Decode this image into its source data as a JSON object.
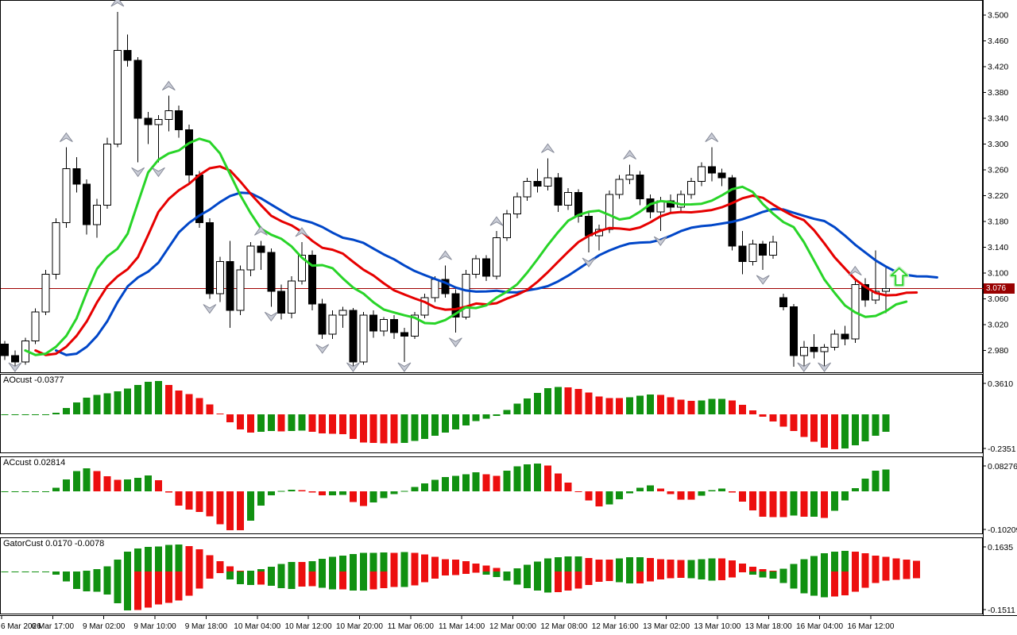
{
  "app": "trading-chart",
  "colors": {
    "background": "#ffffff",
    "border": "#000000",
    "bull_candle": "#ffffff",
    "bear_candle": "#000000",
    "candle_outline": "#000000",
    "alligator_jaw_blue": "#0046c8",
    "alligator_teeth_red": "#e60000",
    "alligator_lips_green": "#28d428",
    "hist_up_green": "#119111",
    "hist_down_red": "#ec0f0f",
    "hline_red": "#a00000",
    "price_tag_bg": "#990000",
    "price_tag_text": "#ffffff",
    "fractal_fill": "#c9ccd6",
    "fractal_stroke": "#878b99",
    "buy_arrow_stroke": "#2fd32f",
    "buy_arrow_glow": "#c2eec2",
    "axis_text": "#000000"
  },
  "main_chart": {
    "y_axis_labels": [
      "3.500",
      "3.460",
      "3.420",
      "3.380",
      "3.340",
      "3.300",
      "3.260",
      "3.220",
      "3.180",
      "3.140",
      "3.100",
      "3.060",
      "3.020",
      "2.980"
    ],
    "hline": {
      "price": 3.076,
      "label": "3.076"
    },
    "buy_arrow": {
      "bar_index": 87.3,
      "price": 3.095
    },
    "fractals_up": [
      6,
      11,
      16,
      25,
      29,
      43,
      48,
      53,
      61,
      69,
      83
    ],
    "fractals_down": [
      1,
      13,
      15,
      20,
      26,
      31,
      34,
      39,
      44,
      57,
      64,
      74,
      78,
      80
    ],
    "alligator": {
      "jaw": {
        "period": 13,
        "shift": 5
      },
      "teeth": {
        "period": 8,
        "shift": 3
      },
      "lips": {
        "period": 5,
        "shift": 2
      }
    }
  },
  "chart_data": {
    "type": "candlestick",
    "x_labels": [
      "6 Mar 2026",
      "6 Mar 17:00",
      "9 Mar 02:00",
      "9 Mar 10:00",
      "9 Mar 18:00",
      "10 Mar 04:00",
      "10 Mar 12:00",
      "10 Mar 20:00",
      "11 Mar 06:00",
      "11 Mar 14:00",
      "12 Mar 00:00",
      "12 Mar 08:00",
      "12 Mar 16:00",
      "13 Mar 02:00",
      "13 Mar 10:00",
      "13 Mar 18:00",
      "16 Mar 04:00",
      "16 Mar 12:00"
    ],
    "ylim": [
      2.955,
      3.515
    ],
    "ohlc": [
      [
        2.99,
        2.995,
        2.965,
        2.972
      ],
      [
        2.972,
        2.98,
        2.952,
        2.962
      ],
      [
        2.962,
        3.0,
        2.958,
        2.995
      ],
      [
        2.995,
        3.045,
        2.99,
        3.04
      ],
      [
        3.04,
        3.105,
        3.035,
        3.098
      ],
      [
        3.098,
        3.185,
        3.09,
        3.178
      ],
      [
        3.178,
        3.295,
        3.17,
        3.262
      ],
      [
        3.262,
        3.28,
        3.225,
        3.238
      ],
      [
        3.238,
        3.245,
        3.16,
        3.175
      ],
      [
        3.175,
        3.215,
        3.155,
        3.205
      ],
      [
        3.205,
        3.31,
        3.2,
        3.3
      ],
      [
        3.3,
        3.505,
        3.295,
        3.445
      ],
      [
        3.445,
        3.47,
        3.42,
        3.43
      ],
      [
        3.43,
        3.435,
        3.272,
        3.34
      ],
      [
        3.34,
        3.35,
        3.3,
        3.33
      ],
      [
        3.33,
        3.345,
        3.272,
        3.338
      ],
      [
        3.338,
        3.375,
        3.32,
        3.352
      ],
      [
        3.352,
        3.36,
        3.31,
        3.322
      ],
      [
        3.322,
        3.33,
        3.24,
        3.252
      ],
      [
        3.252,
        3.258,
        3.17,
        3.178
      ],
      [
        3.178,
        3.185,
        3.06,
        3.068
      ],
      [
        3.068,
        3.125,
        3.055,
        3.118
      ],
      [
        3.118,
        3.15,
        3.015,
        3.042
      ],
      [
        3.042,
        3.112,
        3.035,
        3.105
      ],
      [
        3.105,
        3.148,
        3.095,
        3.142
      ],
      [
        3.142,
        3.15,
        3.105,
        3.132
      ],
      [
        3.132,
        3.138,
        3.048,
        3.072
      ],
      [
        3.072,
        3.082,
        3.028,
        3.038
      ],
      [
        3.038,
        3.095,
        3.03,
        3.088
      ],
      [
        3.088,
        3.148,
        3.082,
        3.128
      ],
      [
        3.128,
        3.135,
        3.042,
        3.052
      ],
      [
        3.052,
        3.06,
        2.998,
        3.005
      ],
      [
        3.005,
        3.042,
        2.998,
        3.035
      ],
      [
        3.035,
        3.048,
        3.015,
        3.042
      ],
      [
        3.042,
        3.046,
        2.952,
        2.962
      ],
      [
        2.962,
        3.04,
        2.958,
        3.035
      ],
      [
        3.035,
        3.042,
        3.0,
        3.01
      ],
      [
        3.01,
        3.032,
        3.002,
        3.028
      ],
      [
        3.028,
        3.035,
        2.998,
        3.008
      ],
      [
        3.008,
        3.015,
        2.962,
        3.002
      ],
      [
        3.002,
        3.04,
        2.998,
        3.035
      ],
      [
        3.035,
        3.068,
        3.03,
        3.062
      ],
      [
        3.062,
        3.095,
        3.055,
        3.09
      ],
      [
        3.09,
        3.112,
        3.062,
        3.068
      ],
      [
        3.068,
        3.075,
        3.008,
        3.032
      ],
      [
        3.032,
        3.105,
        3.028,
        3.098
      ],
      [
        3.098,
        3.128,
        3.092,
        3.122
      ],
      [
        3.122,
        3.128,
        3.088,
        3.095
      ],
      [
        3.095,
        3.165,
        3.09,
        3.155
      ],
      [
        3.155,
        3.198,
        3.15,
        3.192
      ],
      [
        3.192,
        3.225,
        3.185,
        3.218
      ],
      [
        3.218,
        3.248,
        3.212,
        3.242
      ],
      [
        3.242,
        3.262,
        3.225,
        3.235
      ],
      [
        3.235,
        3.278,
        3.228,
        3.248
      ],
      [
        3.248,
        3.255,
        3.195,
        3.205
      ],
      [
        3.205,
        3.232,
        3.198,
        3.225
      ],
      [
        3.225,
        3.23,
        3.178,
        3.188
      ],
      [
        3.188,
        3.195,
        3.132,
        3.158
      ],
      [
        3.158,
        3.175,
        3.135,
        3.168
      ],
      [
        3.168,
        3.228,
        3.162,
        3.222
      ],
      [
        3.222,
        3.252,
        3.215,
        3.245
      ],
      [
        3.245,
        3.268,
        3.238,
        3.252
      ],
      [
        3.252,
        3.258,
        3.205,
        3.215
      ],
      [
        3.215,
        3.222,
        3.185,
        3.195
      ],
      [
        3.195,
        3.218,
        3.165,
        3.212
      ],
      [
        3.212,
        3.222,
        3.192,
        3.202
      ],
      [
        3.202,
        3.228,
        3.195,
        3.222
      ],
      [
        3.222,
        3.248,
        3.215,
        3.242
      ],
      [
        3.242,
        3.272,
        3.235,
        3.265
      ],
      [
        3.265,
        3.295,
        3.242,
        3.255
      ],
      [
        3.255,
        3.262,
        3.235,
        3.248
      ],
      [
        3.248,
        3.252,
        3.135,
        3.142
      ],
      [
        3.142,
        3.165,
        3.098,
        3.118
      ],
      [
        3.118,
        3.152,
        3.112,
        3.145
      ],
      [
        3.145,
        3.15,
        3.105,
        3.128
      ],
      [
        3.128,
        3.158,
        3.122,
        3.148
      ],
      [
        3.062,
        3.068,
        3.042,
        3.048
      ],
      [
        3.048,
        3.052,
        2.955,
        2.972
      ],
      [
        2.972,
        2.995,
        2.952,
        2.985
      ],
      [
        2.985,
        3.005,
        2.968,
        2.978
      ],
      [
        2.978,
        2.99,
        2.955,
        2.985
      ],
      [
        2.985,
        3.012,
        2.98,
        3.005
      ],
      [
        3.005,
        3.018,
        2.988,
        2.998
      ],
      [
        2.998,
        3.088,
        2.992,
        3.082
      ],
      [
        3.082,
        3.092,
        3.048,
        3.058
      ],
      [
        3.058,
        3.135,
        3.052,
        3.072
      ],
      [
        3.072,
        3.108,
        3.038,
        3.076
      ]
    ],
    "panels": [
      {
        "name": "AOcust",
        "label": "AOcust -0.0377",
        "current": -0.0377,
        "max_label": "0.3610",
        "min_label": "-0.2351",
        "type": "bar",
        "derive": "awesome_oscillator"
      },
      {
        "name": "ACcust",
        "label": "ACcust 0.02814",
        "current": 0.02814,
        "max_label": "0.08276",
        "min_label": "-0.10209",
        "type": "bar",
        "derive": "accelerator_oscillator"
      },
      {
        "name": "GatorCust",
        "label": "GatorCust 0.0170 -0.0078",
        "current_upper": 0.017,
        "current_lower": -0.0078,
        "max_label": "0.1635",
        "min_label": "-0.1511",
        "type": "bar",
        "derive": "gator_oscillator"
      }
    ]
  }
}
